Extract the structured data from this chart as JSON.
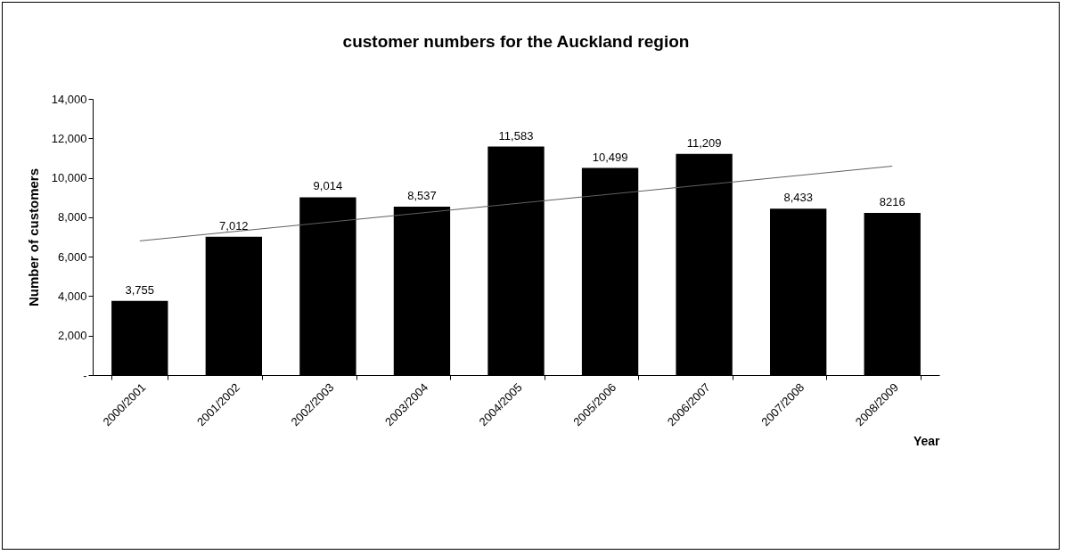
{
  "chart_data": {
    "type": "bar",
    "title": "customer numbers for the Auckland region",
    "xlabel": "Year",
    "ylabel": "Number of customers",
    "categories": [
      "2000/2001",
      "2001/2002",
      "2002/2003",
      "2003/2004",
      "2004/2005",
      "2005/2006",
      "2006/2007",
      "2007/2008",
      "2008/2009"
    ],
    "series": [
      {
        "type": "bar",
        "color": "#000000",
        "values": [
          3755,
          7012,
          9014,
          8537,
          11583,
          10499,
          11209,
          8433,
          8216
        ],
        "value_labels": [
          "3,755",
          "7,012",
          "9,014",
          "8,537",
          "11,583",
          "10,499",
          "11,209",
          "8,433",
          "8216"
        ]
      },
      {
        "type": "line",
        "color": "#606060",
        "x": [
          "2000/2001",
          "2008/2009"
        ],
        "values": [
          6800,
          10590
        ]
      }
    ],
    "ylim": [
      0,
      14000
    ],
    "yticks": [
      {
        "value": 0,
        "label": "-"
      },
      {
        "value": 2000,
        "label": "2,000"
      },
      {
        "value": 4000,
        "label": "4,000"
      },
      {
        "value": 6000,
        "label": "6,000"
      },
      {
        "value": 8000,
        "label": "8,000"
      },
      {
        "value": 10000,
        "label": "10,000"
      },
      {
        "value": 12000,
        "label": "12,000"
      },
      {
        "value": 14000,
        "label": "14,000"
      }
    ]
  }
}
